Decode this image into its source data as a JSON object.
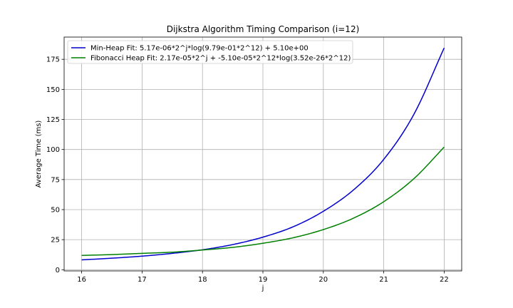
{
  "chart_data": {
    "type": "line",
    "title": "Dijkstra Algorithm Timing Comparison (i=12)",
    "xlabel": "j",
    "ylabel": "Average Time (ms)",
    "xlim": [
      15.71,
      22.29
    ],
    "ylim": [
      -1.0,
      193.5
    ],
    "xticks": [
      16,
      17,
      18,
      19,
      20,
      21,
      22
    ],
    "yticks": [
      0,
      25,
      50,
      75,
      100,
      125,
      150,
      175
    ],
    "grid": true,
    "legend_position": "top-left",
    "series": [
      {
        "name": "Min-Heap Fit: 5.17e-06*2^j*log(9.79e-01*2^12) + 5.10e+00",
        "color": "#0000cc",
        "x": [
          16,
          16.5,
          17,
          17.5,
          18,
          18.5,
          19,
          19.5,
          20,
          20.5,
          21,
          21.5,
          22
        ],
        "y": [
          8.2,
          9.6,
          11.3,
          13.6,
          16.6,
          20.9,
          27.1,
          35.7,
          48.6,
          66.4,
          91.8,
          129.4,
          184.5
        ]
      },
      {
        "name": "Fibonacci Heap Fit: 2.17e-05*2^j + -5.10e-05*2^12*log(3.52e-26*2^12)",
        "color": "#008000",
        "x": [
          16,
          16.5,
          17,
          17.5,
          18,
          18.5,
          19,
          19.5,
          20,
          20.5,
          21,
          21.5,
          22
        ],
        "y": [
          11.9,
          12.6,
          13.6,
          14.6,
          16.4,
          18.6,
          22.0,
          26.6,
          33.4,
          42.9,
          56.6,
          75.8,
          102.0
        ]
      }
    ]
  }
}
